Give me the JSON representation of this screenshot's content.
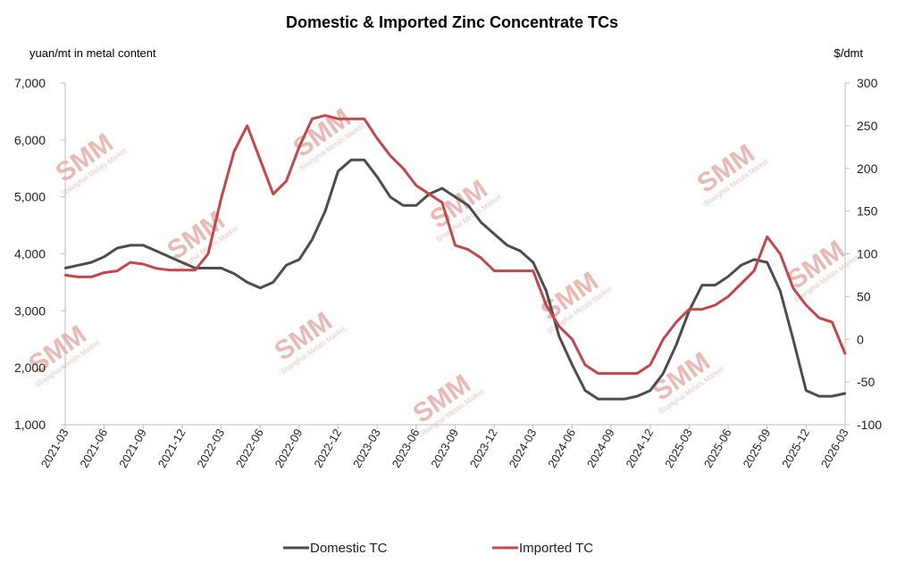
{
  "chart_data": {
    "type": "line",
    "title": "Domestic & Imported Zinc Concentrate TCs",
    "ylabel_left": "yuan/mt in metal content",
    "ylabel_right": "$/dmt",
    "ylim_left": [
      1000,
      7000
    ],
    "yticks_left": [
      "1,000",
      "2,000",
      "3,000",
      "4,000",
      "5,000",
      "6,000",
      "7,000"
    ],
    "ylim_right": [
      -100,
      300
    ],
    "yticks_right": [
      "-100",
      "-50",
      "0",
      "50",
      "100",
      "150",
      "200",
      "250",
      "300"
    ],
    "xticks": [
      "2021-03",
      "2021-06",
      "2021-09",
      "2021-12",
      "2022-03",
      "2022-06",
      "2022-09",
      "2022-12",
      "2023-03",
      "2023-06",
      "2023-09",
      "2023-12",
      "2024-03",
      "2024-06",
      "2024-09",
      "2024-12",
      "2025-03",
      "2025-06",
      "2025-09",
      "2025-12",
      "2026-03"
    ],
    "grid": false,
    "legend_position": "bottom",
    "watermark": "SMM",
    "watermark_sub": "Shanghai Metals Market",
    "series": [
      {
        "name": "Domestic TC",
        "axis": "left",
        "color": "#4d4d4d",
        "points": [
          [
            "2021-03",
            3750
          ],
          [
            "2021-04",
            3800
          ],
          [
            "2021-05",
            3850
          ],
          [
            "2021-06",
            3950
          ],
          [
            "2021-07",
            4100
          ],
          [
            "2021-08",
            4150
          ],
          [
            "2021-09",
            4150
          ],
          [
            "2021-10",
            4050
          ],
          [
            "2021-11",
            3950
          ],
          [
            "2021-12",
            3850
          ],
          [
            "2022-01",
            3750
          ],
          [
            "2022-02",
            3750
          ],
          [
            "2022-03",
            3750
          ],
          [
            "2022-04",
            3650
          ],
          [
            "2022-05",
            3500
          ],
          [
            "2022-06",
            3400
          ],
          [
            "2022-07",
            3500
          ],
          [
            "2022-08",
            3800
          ],
          [
            "2022-09",
            3900
          ],
          [
            "2022-10",
            4250
          ],
          [
            "2022-11",
            4750
          ],
          [
            "2022-12",
            5450
          ],
          [
            "2023-01",
            5650
          ],
          [
            "2023-02",
            5650
          ],
          [
            "2023-03",
            5350
          ],
          [
            "2023-04",
            5000
          ],
          [
            "2023-05",
            4850
          ],
          [
            "2023-06",
            4850
          ],
          [
            "2023-07",
            5050
          ],
          [
            "2023-08",
            5150
          ],
          [
            "2023-09",
            5000
          ],
          [
            "2023-10",
            4850
          ],
          [
            "2023-11",
            4550
          ],
          [
            "2023-12",
            4350
          ],
          [
            "2024-01",
            4150
          ],
          [
            "2024-02",
            4050
          ],
          [
            "2024-03",
            3850
          ],
          [
            "2024-04",
            3350
          ],
          [
            "2024-05",
            2550
          ],
          [
            "2024-06",
            2050
          ],
          [
            "2024-07",
            1600
          ],
          [
            "2024-08",
            1450
          ],
          [
            "2024-09",
            1450
          ],
          [
            "2024-10",
            1450
          ],
          [
            "2024-11",
            1500
          ],
          [
            "2024-12",
            1600
          ],
          [
            "2025-01",
            1900
          ],
          [
            "2025-02",
            2400
          ],
          [
            "2025-03",
            3000
          ],
          [
            "2025-04",
            3450
          ],
          [
            "2025-05",
            3450
          ],
          [
            "2025-06",
            3600
          ],
          [
            "2025-07",
            3800
          ],
          [
            "2025-08",
            3900
          ],
          [
            "2025-09",
            3850
          ],
          [
            "2025-10",
            3350
          ],
          [
            "2025-11",
            2500
          ],
          [
            "2025-12",
            1600
          ],
          [
            "2026-01",
            1500
          ],
          [
            "2026-02",
            1500
          ],
          [
            "2026-03",
            1550
          ]
        ]
      },
      {
        "name": "Imported TC",
        "axis": "right",
        "color": "#c1474a",
        "points": [
          [
            "2021-03",
            75
          ],
          [
            "2021-04",
            73
          ],
          [
            "2021-05",
            73
          ],
          [
            "2021-06",
            78
          ],
          [
            "2021-07",
            80
          ],
          [
            "2021-08",
            90
          ],
          [
            "2021-09",
            88
          ],
          [
            "2021-10",
            83
          ],
          [
            "2021-11",
            81
          ],
          [
            "2021-12",
            81
          ],
          [
            "2022-01",
            81
          ],
          [
            "2022-02",
            100
          ],
          [
            "2022-03",
            165
          ],
          [
            "2022-04",
            220
          ],
          [
            "2022-05",
            250
          ],
          [
            "2022-06",
            210
          ],
          [
            "2022-07",
            170
          ],
          [
            "2022-08",
            185
          ],
          [
            "2022-09",
            225
          ],
          [
            "2022-10",
            258
          ],
          [
            "2022-11",
            262
          ],
          [
            "2022-12",
            258
          ],
          [
            "2023-01",
            258
          ],
          [
            "2023-02",
            258
          ],
          [
            "2023-03",
            235
          ],
          [
            "2023-04",
            215
          ],
          [
            "2023-05",
            200
          ],
          [
            "2023-06",
            180
          ],
          [
            "2023-07",
            170
          ],
          [
            "2023-08",
            160
          ],
          [
            "2023-09",
            110
          ],
          [
            "2023-10",
            105
          ],
          [
            "2023-11",
            95
          ],
          [
            "2023-12",
            80
          ],
          [
            "2024-01",
            80
          ],
          [
            "2024-02",
            80
          ],
          [
            "2024-03",
            80
          ],
          [
            "2024-04",
            40
          ],
          [
            "2024-05",
            15
          ],
          [
            "2024-06",
            0
          ],
          [
            "2024-07",
            -30
          ],
          [
            "2024-08",
            -40
          ],
          [
            "2024-09",
            -40
          ],
          [
            "2024-10",
            -40
          ],
          [
            "2024-11",
            -40
          ],
          [
            "2024-12",
            -30
          ],
          [
            "2025-01",
            0
          ],
          [
            "2025-02",
            20
          ],
          [
            "2025-03",
            35
          ],
          [
            "2025-04",
            35
          ],
          [
            "2025-05",
            40
          ],
          [
            "2025-06",
            50
          ],
          [
            "2025-07",
            65
          ],
          [
            "2025-08",
            80
          ],
          [
            "2025-09",
            120
          ],
          [
            "2025-10",
            100
          ],
          [
            "2025-11",
            60
          ],
          [
            "2025-12",
            40
          ],
          [
            "2026-01",
            25
          ],
          [
            "2026-02",
            20
          ],
          [
            "2026-03",
            -17
          ]
        ]
      }
    ]
  }
}
